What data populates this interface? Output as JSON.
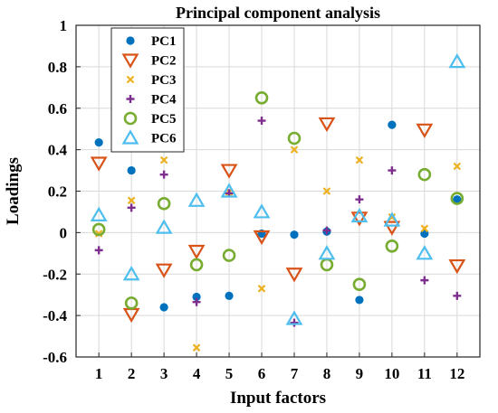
{
  "chart_data": {
    "type": "scatter",
    "title": "Principal component analysis",
    "xlabel": "Input factors",
    "ylabel": "Loadings",
    "x": [
      1,
      2,
      3,
      4,
      5,
      6,
      7,
      8,
      9,
      10,
      11,
      12
    ],
    "xlim": [
      0.3,
      12.7
    ],
    "ylim": [
      -0.6,
      1.0
    ],
    "xticks": [
      1,
      2,
      3,
      4,
      5,
      6,
      7,
      8,
      9,
      10,
      11,
      12
    ],
    "yticks": [
      -0.6,
      -0.4,
      -0.2,
      0,
      0.2,
      0.4,
      0.6,
      0.8,
      1
    ],
    "ytick_labels": [
      "-0.6",
      "-0.4",
      "-0.2",
      "0",
      "0.2",
      "0.4",
      "0.6",
      "0.8",
      "1"
    ],
    "grid": true,
    "legend_position": "top-left",
    "series": [
      {
        "name": "PC1",
        "marker": "filled-circle",
        "color": "#0072BD",
        "values": [
          0.435,
          0.3,
          -0.36,
          -0.31,
          -0.305,
          -0.005,
          -0.01,
          0.005,
          -0.325,
          0.52,
          -0.005,
          0.16
        ]
      },
      {
        "name": "PC2",
        "marker": "triangle-down",
        "color": "#D95319",
        "values": [
          0.335,
          -0.395,
          -0.18,
          -0.09,
          0.3,
          -0.02,
          -0.2,
          0.525,
          0.07,
          0.025,
          0.495,
          -0.16
        ]
      },
      {
        "name": "PC3",
        "marker": "x",
        "color": "#EDB120",
        "values": [
          -0.005,
          0.155,
          0.35,
          -0.555,
          0.195,
          -0.27,
          0.4,
          0.2,
          0.35,
          0.075,
          0.02,
          0.32
        ]
      },
      {
        "name": "PC4",
        "marker": "plus",
        "color": "#7E2F8E",
        "values": [
          -0.085,
          0.12,
          0.28,
          -0.335,
          0.19,
          0.54,
          -0.435,
          0.01,
          0.16,
          0.3,
          -0.23,
          -0.305
        ]
      },
      {
        "name": "PC5",
        "marker": "open-circle",
        "color": "#77AC30",
        "values": [
          0.015,
          -0.34,
          0.14,
          -0.155,
          -0.11,
          0.65,
          0.455,
          -0.155,
          -0.25,
          -0.065,
          0.28,
          0.165
        ]
      },
      {
        "name": "PC6",
        "marker": "triangle-up",
        "color": "#4DBEEE",
        "values": [
          0.085,
          -0.2,
          0.025,
          0.155,
          0.2,
          0.1,
          -0.415,
          -0.1,
          0.08,
          0.06,
          -0.1,
          0.825
        ]
      }
    ]
  }
}
